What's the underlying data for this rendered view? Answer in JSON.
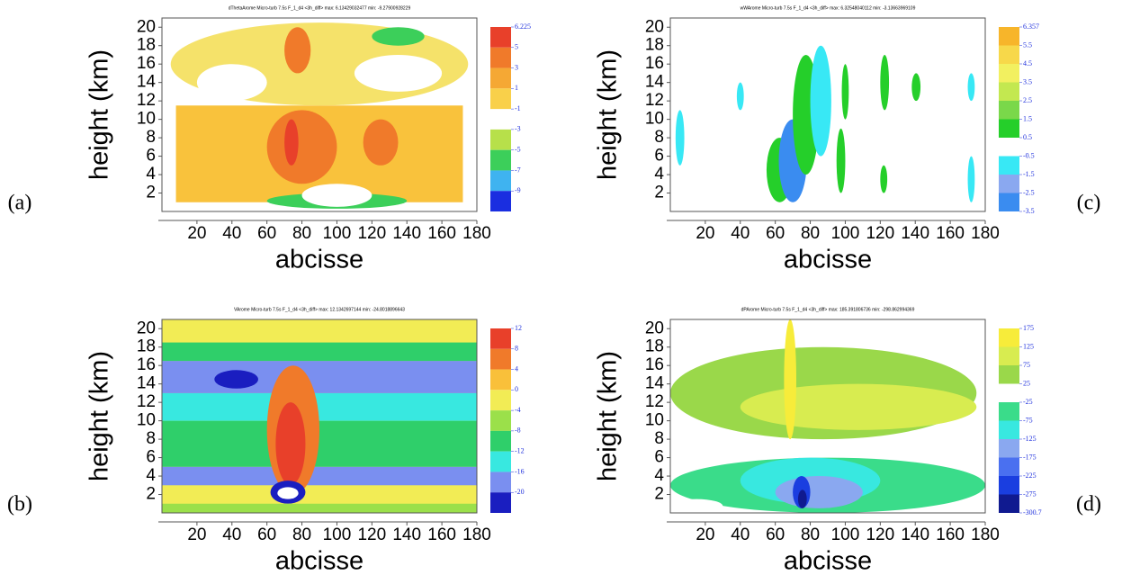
{
  "chart_data": [
    {
      "type": "contour",
      "panel": "(a)",
      "title": "dThetaArome Micro-turb 7.5s F_1_d4 <3h_diff> max: 6.13429032477 min: -9.27900928229",
      "xlabel": "abcisse",
      "ylabel": "height (km)",
      "xlim": [
        0,
        180
      ],
      "ylim": [
        0,
        21
      ],
      "xticks": [
        20,
        40,
        60,
        80,
        100,
        120,
        140,
        160,
        180
      ],
      "yticks": [
        2,
        4,
        6,
        8,
        10,
        12,
        14,
        16,
        18,
        20
      ],
      "levels": [
        6.225,
        5,
        3,
        1,
        -1,
        -3,
        -5,
        -7,
        -9
      ],
      "colors": [
        "#e8402a",
        "#f07a2a",
        "#f5a834",
        "#f9d04a",
        null,
        "#b7e04a",
        "#3ccf5a",
        "#3fb3f0",
        "#1a2ee0"
      ]
    },
    {
      "type": "contour",
      "panel": "(b)",
      "title": "VArome Micro-turb 7.5s F_1_d4 <3h_diff> max: 12.1342697144 min: -24.8018896643",
      "xlabel": "abcisse",
      "ylabel": "height (km)",
      "xlim": [
        0,
        180
      ],
      "ylim": [
        0,
        21
      ],
      "xticks": [
        20,
        40,
        60,
        80,
        100,
        120,
        140,
        160,
        180
      ],
      "yticks": [
        2,
        4,
        6,
        8,
        10,
        12,
        14,
        16,
        18,
        20
      ],
      "levels": [
        12,
        8,
        4,
        0,
        -4,
        -8,
        -12,
        -16,
        -20
      ],
      "colors": [
        "#e8402a",
        "#f07a2a",
        "#f9c03a",
        "#f2ec55",
        "#9be04a",
        "#2fcf6a",
        "#38e8e0",
        "#7a8ff0",
        "#1a1ec0"
      ]
    },
    {
      "type": "contour",
      "panel": "(c)",
      "title": "wWArome Micro-turb 7.5s F_1_d4 <3h_diff> max: 6.32548040112 min: -3.13663969109",
      "xlabel": "abcisse",
      "ylabel": "height (km)",
      "xlim": [
        0,
        180
      ],
      "ylim": [
        0,
        21
      ],
      "xticks": [
        20,
        40,
        60,
        80,
        100,
        120,
        140,
        160,
        180
      ],
      "yticks": [
        2,
        4,
        6,
        8,
        10,
        12,
        14,
        16,
        18,
        20
      ],
      "levels": [
        6.357,
        5.5,
        4.5,
        3.5,
        2.5,
        1.5,
        0.5,
        -0.5,
        -1.5,
        -2.5,
        -3.5
      ],
      "colors": [
        "#f7b52a",
        "#f7d84a",
        "#f2f060",
        "#c3e850",
        "#7ad84a",
        "#25cf2a",
        null,
        "#38e8f5",
        "#8aa8f0",
        "#3a8cf0"
      ]
    },
    {
      "type": "contour",
      "panel": "(d)",
      "title": "dPArome Micro-turb 7.5s F_1_d4 <3h_diff> max: 185.391806736 min: -298.862994369",
      "xlabel": "abcisse",
      "ylabel": "height (km)",
      "xlim": [
        0,
        180
      ],
      "ylim": [
        0,
        21
      ],
      "xticks": [
        20,
        40,
        60,
        80,
        100,
        120,
        140,
        160,
        180
      ],
      "yticks": [
        2,
        4,
        6,
        8,
        10,
        12,
        14,
        16,
        18,
        20
      ],
      "levels": [
        175,
        125,
        75,
        25,
        -25,
        -75,
        -125,
        -175,
        -225,
        -275,
        -300.7
      ],
      "colors": [
        "#f7ec3a",
        "#d8ec50",
        "#9ad84a",
        null,
        "#3adc8a",
        "#38e8e0",
        "#8aa8f0",
        "#4a70f0",
        "#1a3ee0",
        "#101a90"
      ]
    }
  ]
}
